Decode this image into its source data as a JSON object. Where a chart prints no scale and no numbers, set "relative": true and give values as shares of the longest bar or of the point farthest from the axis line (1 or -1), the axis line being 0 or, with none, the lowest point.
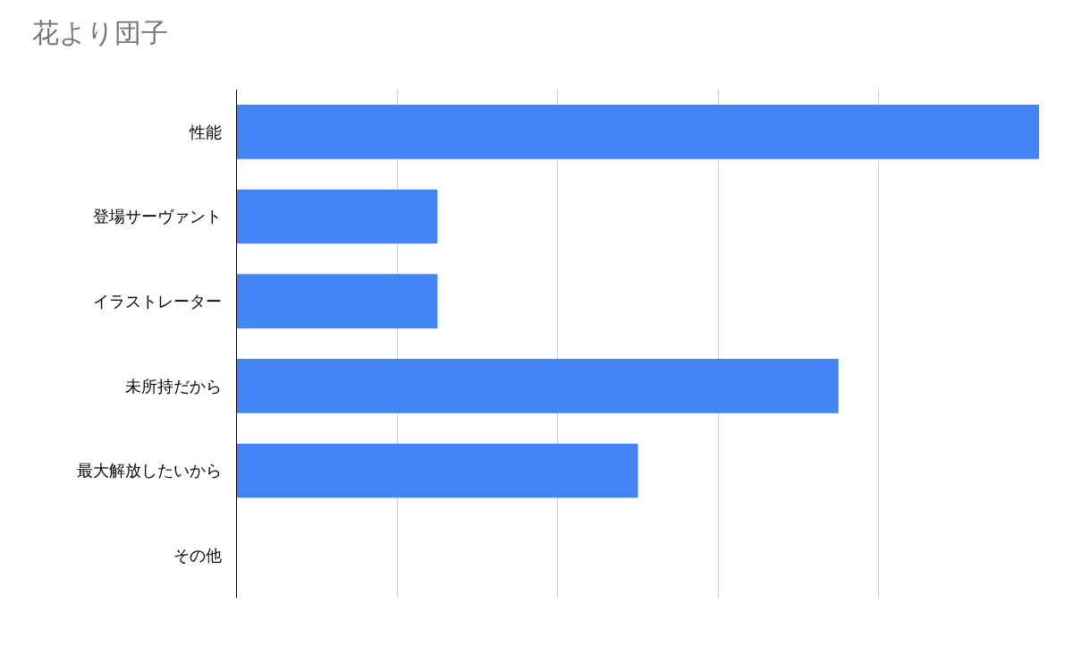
{
  "chart_data": {
    "type": "bar",
    "title": "花より団子",
    "orientation": "horizontal",
    "relative": true,
    "categories": [
      "性能",
      "登場サーヴァント",
      "イラストレーター",
      "未所持だから",
      "最大解放したいから",
      "その他"
    ],
    "values": [
      1,
      0.25,
      0.25,
      0.75,
      0.5,
      0
    ],
    "color": "#4285f4",
    "grid": "x",
    "legend": false,
    "tick_labels": "y"
  }
}
